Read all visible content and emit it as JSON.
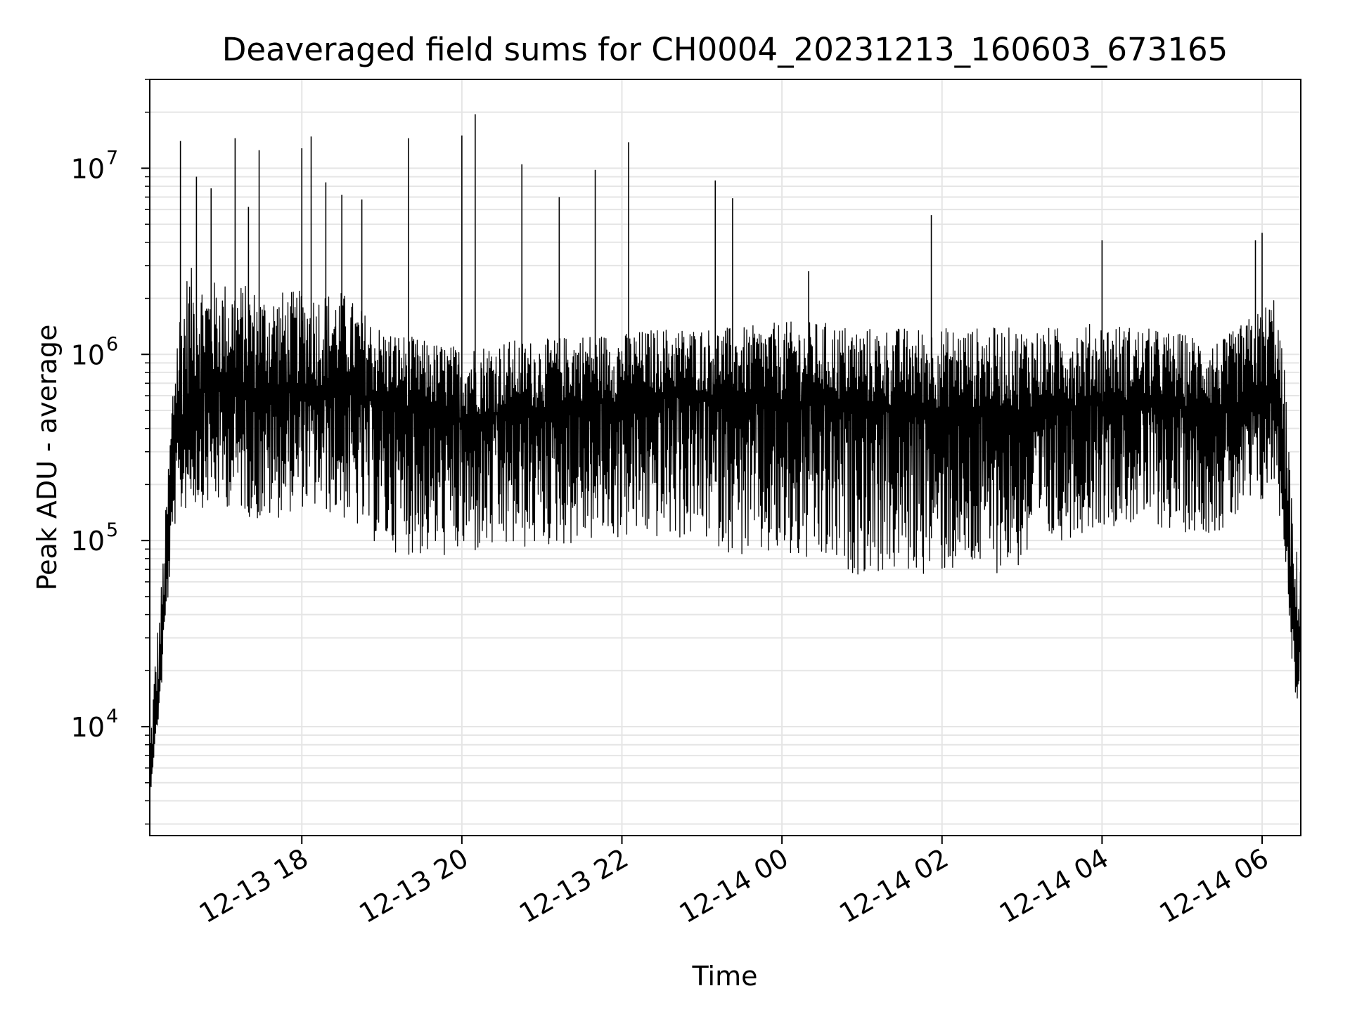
{
  "chart_data": {
    "type": "line",
    "title": "Deaveraged field sums for CH0004_20231213_160603_673165",
    "xlabel": "Time",
    "ylabel": "Peak ADU - average",
    "yscale": "log",
    "grid": true,
    "legend": "none",
    "line_color": "#000000",
    "grid_color": "#e5e5e5",
    "xlim": [
      "2023-12-13 16:06",
      "2023-12-14 06:29"
    ],
    "ylim": [
      2600,
      30000000
    ],
    "x_ticks": [
      {
        "value": "2023-12-13 18:00",
        "label": "12-13 18"
      },
      {
        "value": "2023-12-13 20:00",
        "label": "12-13 20"
      },
      {
        "value": "2023-12-13 22:00",
        "label": "12-13 22"
      },
      {
        "value": "2023-12-14 00:00",
        "label": "12-14 00"
      },
      {
        "value": "2023-12-14 02:00",
        "label": "12-14 02"
      },
      {
        "value": "2023-12-14 04:00",
        "label": "12-14 04"
      },
      {
        "value": "2023-12-14 06:00",
        "label": "12-14 06"
      }
    ],
    "y_ticks": [
      {
        "value": 10000,
        "base": "10",
        "exp": "4"
      },
      {
        "value": 100000,
        "base": "10",
        "exp": "5"
      },
      {
        "value": 1000000,
        "base": "10",
        "exp": "6"
      },
      {
        "value": 10000000,
        "base": "10",
        "exp": "7"
      }
    ],
    "series": [
      {
        "time": [
          "2023-12-13 16:06",
          "2023-12-13 16:10",
          "2023-12-13 16:14",
          "2023-12-13 16:18",
          "2023-12-13 16:25",
          "2023-12-13 16:35",
          "2023-12-13 16:50",
          "2023-12-13 17:10",
          "2023-12-13 17:30",
          "2023-12-13 18:00",
          "2023-12-13 18:30",
          "2023-12-13 19:00",
          "2023-12-13 19:30",
          "2023-12-13 20:00",
          "2023-12-13 20:30",
          "2023-12-13 21:00",
          "2023-12-13 21:30",
          "2023-12-13 22:00",
          "2023-12-13 22:30",
          "2023-12-13 23:00",
          "2023-12-13 23:30",
          "2023-12-14 00:00",
          "2023-12-14 00:30",
          "2023-12-14 01:00",
          "2023-12-14 01:30",
          "2023-12-14 02:00",
          "2023-12-14 02:30",
          "2023-12-14 03:00",
          "2023-12-14 03:30",
          "2023-12-14 04:00",
          "2023-12-14 04:30",
          "2023-12-14 05:00",
          "2023-12-14 05:30",
          "2023-12-14 06:00",
          "2023-12-14 06:10",
          "2023-12-14 06:18",
          "2023-12-14 06:24",
          "2023-12-14 06:29"
        ],
        "mid": [
          5000,
          9000,
          20000,
          60000,
          300000,
          600000,
          650000,
          650000,
          600000,
          650000,
          650000,
          550000,
          500000,
          450000,
          480000,
          500000,
          550000,
          550000,
          600000,
          600000,
          550000,
          550000,
          550000,
          500000,
          500000,
          500000,
          500000,
          500000,
          520000,
          550000,
          550000,
          520000,
          480000,
          600000,
          700000,
          150000,
          30000,
          30000
        ],
        "lo": [
          4000,
          8000,
          13000,
          35000,
          120000,
          150000,
          150000,
          150000,
          120000,
          150000,
          130000,
          90000,
          80000,
          80000,
          85000,
          90000,
          95000,
          100000,
          100000,
          100000,
          80000,
          75000,
          70000,
          65000,
          65000,
          65000,
          65000,
          70000,
          100000,
          120000,
          120000,
          110000,
          110000,
          150000,
          200000,
          70000,
          15000,
          12000
        ],
        "hi": [
          8000,
          25000,
          50000,
          150000,
          1500000,
          3000000,
          2500000,
          2500000,
          2200000,
          2200000,
          2200000,
          1400000,
          1200000,
          1100000,
          1200000,
          1200000,
          1300000,
          1300000,
          1400000,
          1400000,
          1400000,
          1500000,
          1500000,
          1400000,
          1400000,
          1400000,
          1400000,
          1400000,
          1400000,
          1500000,
          1400000,
          1300000,
          1200000,
          1800000,
          2200000,
          700000,
          90000,
          90000
        ]
      }
    ],
    "spikes": [
      {
        "t": "2023-12-13 16:29",
        "v": 14000000
      },
      {
        "t": "2023-12-13 16:41",
        "v": 9000000
      },
      {
        "t": "2023-12-13 16:52",
        "v": 7800000
      },
      {
        "t": "2023-12-13 17:10",
        "v": 14500000
      },
      {
        "t": "2023-12-13 17:28",
        "v": 12500000
      },
      {
        "t": "2023-12-13 17:20",
        "v": 6200000
      },
      {
        "t": "2023-12-13 18:00",
        "v": 12800000
      },
      {
        "t": "2023-12-13 18:07",
        "v": 14800000
      },
      {
        "t": "2023-12-13 18:18",
        "v": 8400000
      },
      {
        "t": "2023-12-13 18:30",
        "v": 7200000
      },
      {
        "t": "2023-12-13 18:45",
        "v": 6800000
      },
      {
        "t": "2023-12-13 19:20",
        "v": 14500000
      },
      {
        "t": "2023-12-13 20:00",
        "v": 15000000
      },
      {
        "t": "2023-12-13 20:10",
        "v": 19500000
      },
      {
        "t": "2023-12-13 20:45",
        "v": 10500000
      },
      {
        "t": "2023-12-13 21:13",
        "v": 7000000
      },
      {
        "t": "2023-12-13 21:40",
        "v": 9800000
      },
      {
        "t": "2023-12-13 22:05",
        "v": 13800000
      },
      {
        "t": "2023-12-13 23:10",
        "v": 8600000
      },
      {
        "t": "2023-12-13 23:23",
        "v": 6900000
      },
      {
        "t": "2023-12-14 00:20",
        "v": 2800000
      },
      {
        "t": "2023-12-14 01:52",
        "v": 5600000
      },
      {
        "t": "2023-12-14 04:00",
        "v": 4100000
      },
      {
        "t": "2023-12-14 05:55",
        "v": 4100000
      },
      {
        "t": "2023-12-14 06:00",
        "v": 4500000
      }
    ]
  }
}
